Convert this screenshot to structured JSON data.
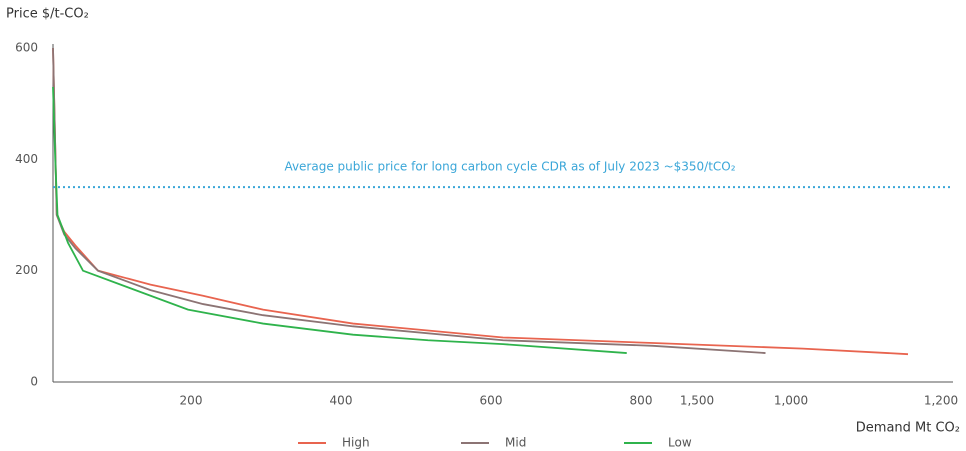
{
  "chart_data": {
    "type": "line",
    "y_label": "Price $/t-CO₂",
    "x_label": "Demand Mt CO₂",
    "xlim": [
      0,
      1200
    ],
    "xticks": [
      200,
      400,
      600,
      800,
      1000,
      1200
    ],
    "xtick_labels": [
      "200",
      "400",
      "600",
      "800",
      "1,000",
      "1,200"
    ],
    "extra_x_label": "1,500",
    "ylim": [
      0,
      600
    ],
    "yticks": [
      0,
      200,
      400,
      600
    ],
    "reference_line": {
      "value": 350,
      "label": "Average public price for long carbon cycle CDR as of July 2023 ~$350/tCO₂",
      "color": "#3aa6d8"
    },
    "grid": false,
    "series": [
      {
        "name": "High",
        "color": "#e8644f",
        "x": [
          0,
          5,
          15,
          30,
          60,
          130,
          200,
          280,
          400,
          600,
          800,
          1000,
          1140
        ],
        "values": [
          600,
          300,
          270,
          245,
          200,
          175,
          155,
          130,
          105,
          80,
          70,
          60,
          50
        ]
      },
      {
        "name": "Mid",
        "color": "#8c7474",
        "x": [
          0,
          5,
          15,
          30,
          60,
          130,
          200,
          280,
          400,
          600,
          800,
          950
        ],
        "values": [
          600,
          300,
          265,
          240,
          200,
          165,
          140,
          120,
          100,
          75,
          65,
          52
        ]
      },
      {
        "name": "Low",
        "color": "#2fb34c",
        "x": [
          0,
          3,
          6,
          20,
          40,
          100,
          180,
          280,
          400,
          500,
          600,
          765
        ],
        "values": [
          530,
          400,
          300,
          250,
          200,
          170,
          130,
          105,
          85,
          75,
          68,
          52
        ]
      }
    ]
  }
}
